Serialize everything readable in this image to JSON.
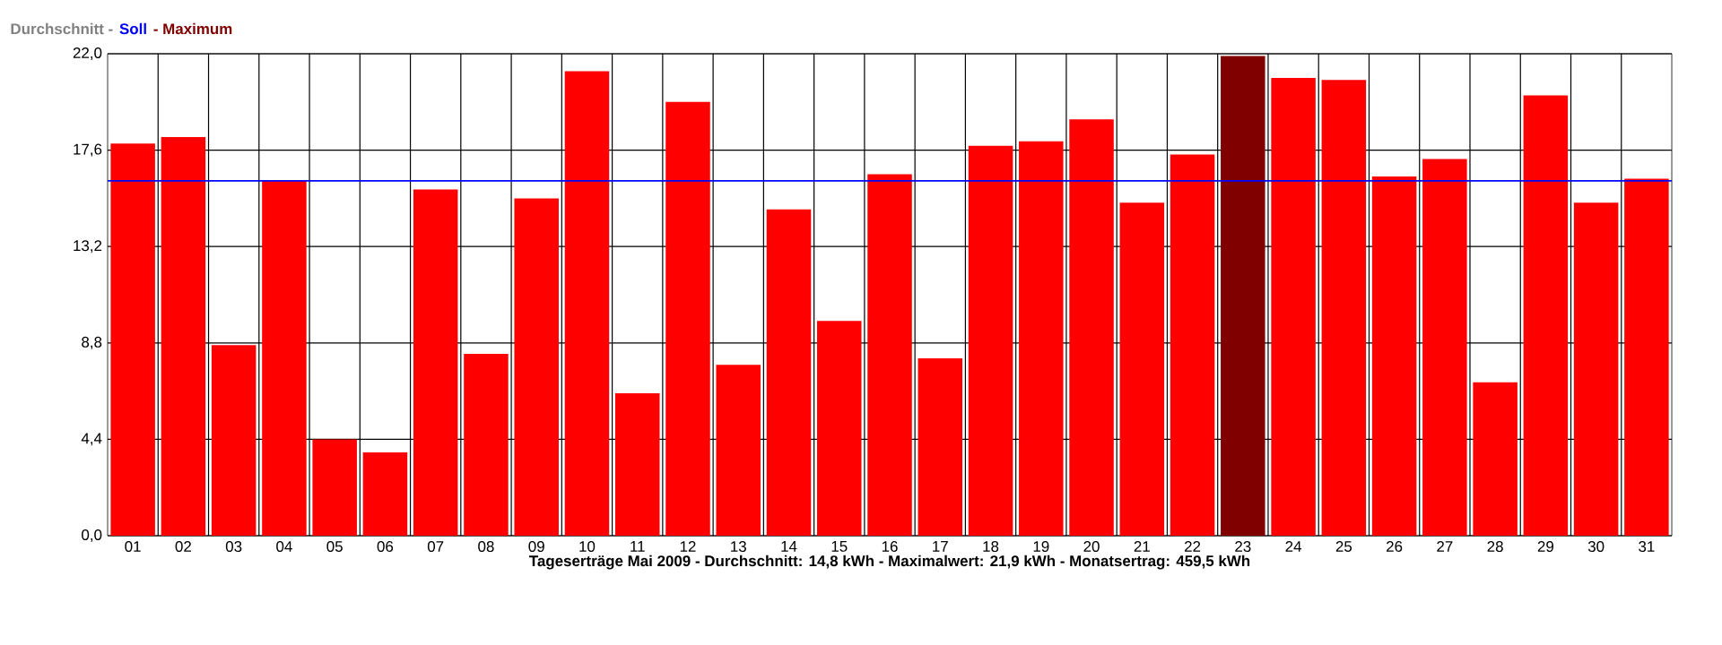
{
  "chart_data": {
    "type": "bar",
    "xlabel": "Tageserträge Mai 2009 - Durchschnitt: 14,8 kWh - Maximalwert: 21,9 kWh - Monatsertrag: 459,5 kWh",
    "annotations": [
      "Durchschnitt -",
      "- Maximum"
    ],
    "categories": [
      "01",
      "02",
      "03",
      "04",
      "05",
      "06",
      "07",
      "08",
      "09",
      "10",
      "11",
      "12",
      "13",
      "14",
      "15",
      "16",
      "17",
      "18",
      "19",
      "20",
      "21",
      "22",
      "23",
      "24",
      "25",
      "26",
      "27",
      "28",
      "29",
      "30",
      "31"
    ],
    "values": [
      17.9,
      18.2,
      8.7,
      16.2,
      4.4,
      3.8,
      15.8,
      8.3,
      15.4,
      21.2,
      6.5,
      19.8,
      7.8,
      14.9,
      9.8,
      16.5,
      8.1,
      17.8,
      18.0,
      19.0,
      15.2,
      17.4,
      21.9,
      20.9,
      20.8,
      16.4,
      17.2,
      7.0,
      20.1,
      15.2,
      16.3
    ],
    "colors": [
      "#ff0000",
      "#ff0000",
      "#ff0000",
      "#ff0000",
      "#ff0000",
      "#ff0000",
      "#ff0000",
      "#ff0000",
      "#ff0000",
      "#ff0000",
      "#ff0000",
      "#ff0000",
      "#ff0000",
      "#ff0000",
      "#ff0000",
      "#ff0000",
      "#ff0000",
      "#ff0000",
      "#ff0000",
      "#ff0000",
      "#ff0000",
      "#ff0000",
      "#800000",
      "#ff0000",
      "#ff0000",
      "#ff0000",
      "#ff0000",
      "#ff0000",
      "#ff0000",
      "#ff0000",
      "#ff0000"
    ],
    "ref_lines": [
      {
        "axis": "y",
        "value": 16.2,
        "label": "Soll",
        "color": "#0000ff"
      }
    ],
    "ylim": [
      0,
      22
    ],
    "yticks": [
      {
        "value": 0,
        "label": "0,0"
      },
      {
        "value": 4.4,
        "label": "4,4"
      },
      {
        "value": 8.8,
        "label": "8,8"
      },
      {
        "value": 13.2,
        "label": "13,2"
      },
      {
        "value": 17.6,
        "label": "17,6"
      },
      {
        "value": 22,
        "label": "22,0"
      }
    ],
    "grid": true
  }
}
